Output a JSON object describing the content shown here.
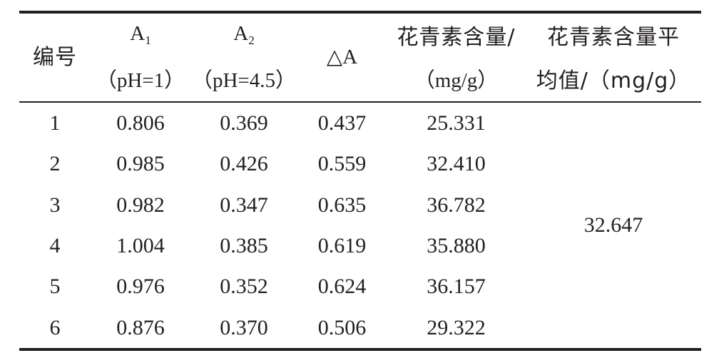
{
  "table": {
    "headers": {
      "id": "编号",
      "a1": {
        "base": "A",
        "sub": "1",
        "cond": "（pH=1）"
      },
      "a2": {
        "base": "A",
        "sub": "2",
        "cond": "（pH=4.5）"
      },
      "delta": "△A",
      "content": {
        "line1": "花青素含量/",
        "line2": "（mg/g）"
      },
      "mean": {
        "line1": "花青素含量平",
        "line2": "均值/（mg/g）"
      }
    },
    "rows": [
      {
        "id": "1",
        "a1": "0.806",
        "a2": "0.369",
        "delta": "0.437",
        "content": "25.331"
      },
      {
        "id": "2",
        "a1": "0.985",
        "a2": "0.426",
        "delta": "0.559",
        "content": "32.410"
      },
      {
        "id": "3",
        "a1": "0.982",
        "a2": "0.347",
        "delta": "0.635",
        "content": "36.782"
      },
      {
        "id": "4",
        "a1": "1.004",
        "a2": "0.385",
        "delta": "0.619",
        "content": "35.880"
      },
      {
        "id": "5",
        "a1": "0.976",
        "a2": "0.352",
        "delta": "0.624",
        "content": "36.157"
      },
      {
        "id": "6",
        "a1": "0.876",
        "a2": "0.370",
        "delta": "0.506",
        "content": "29.322"
      }
    ],
    "mean_value": "32.647"
  }
}
